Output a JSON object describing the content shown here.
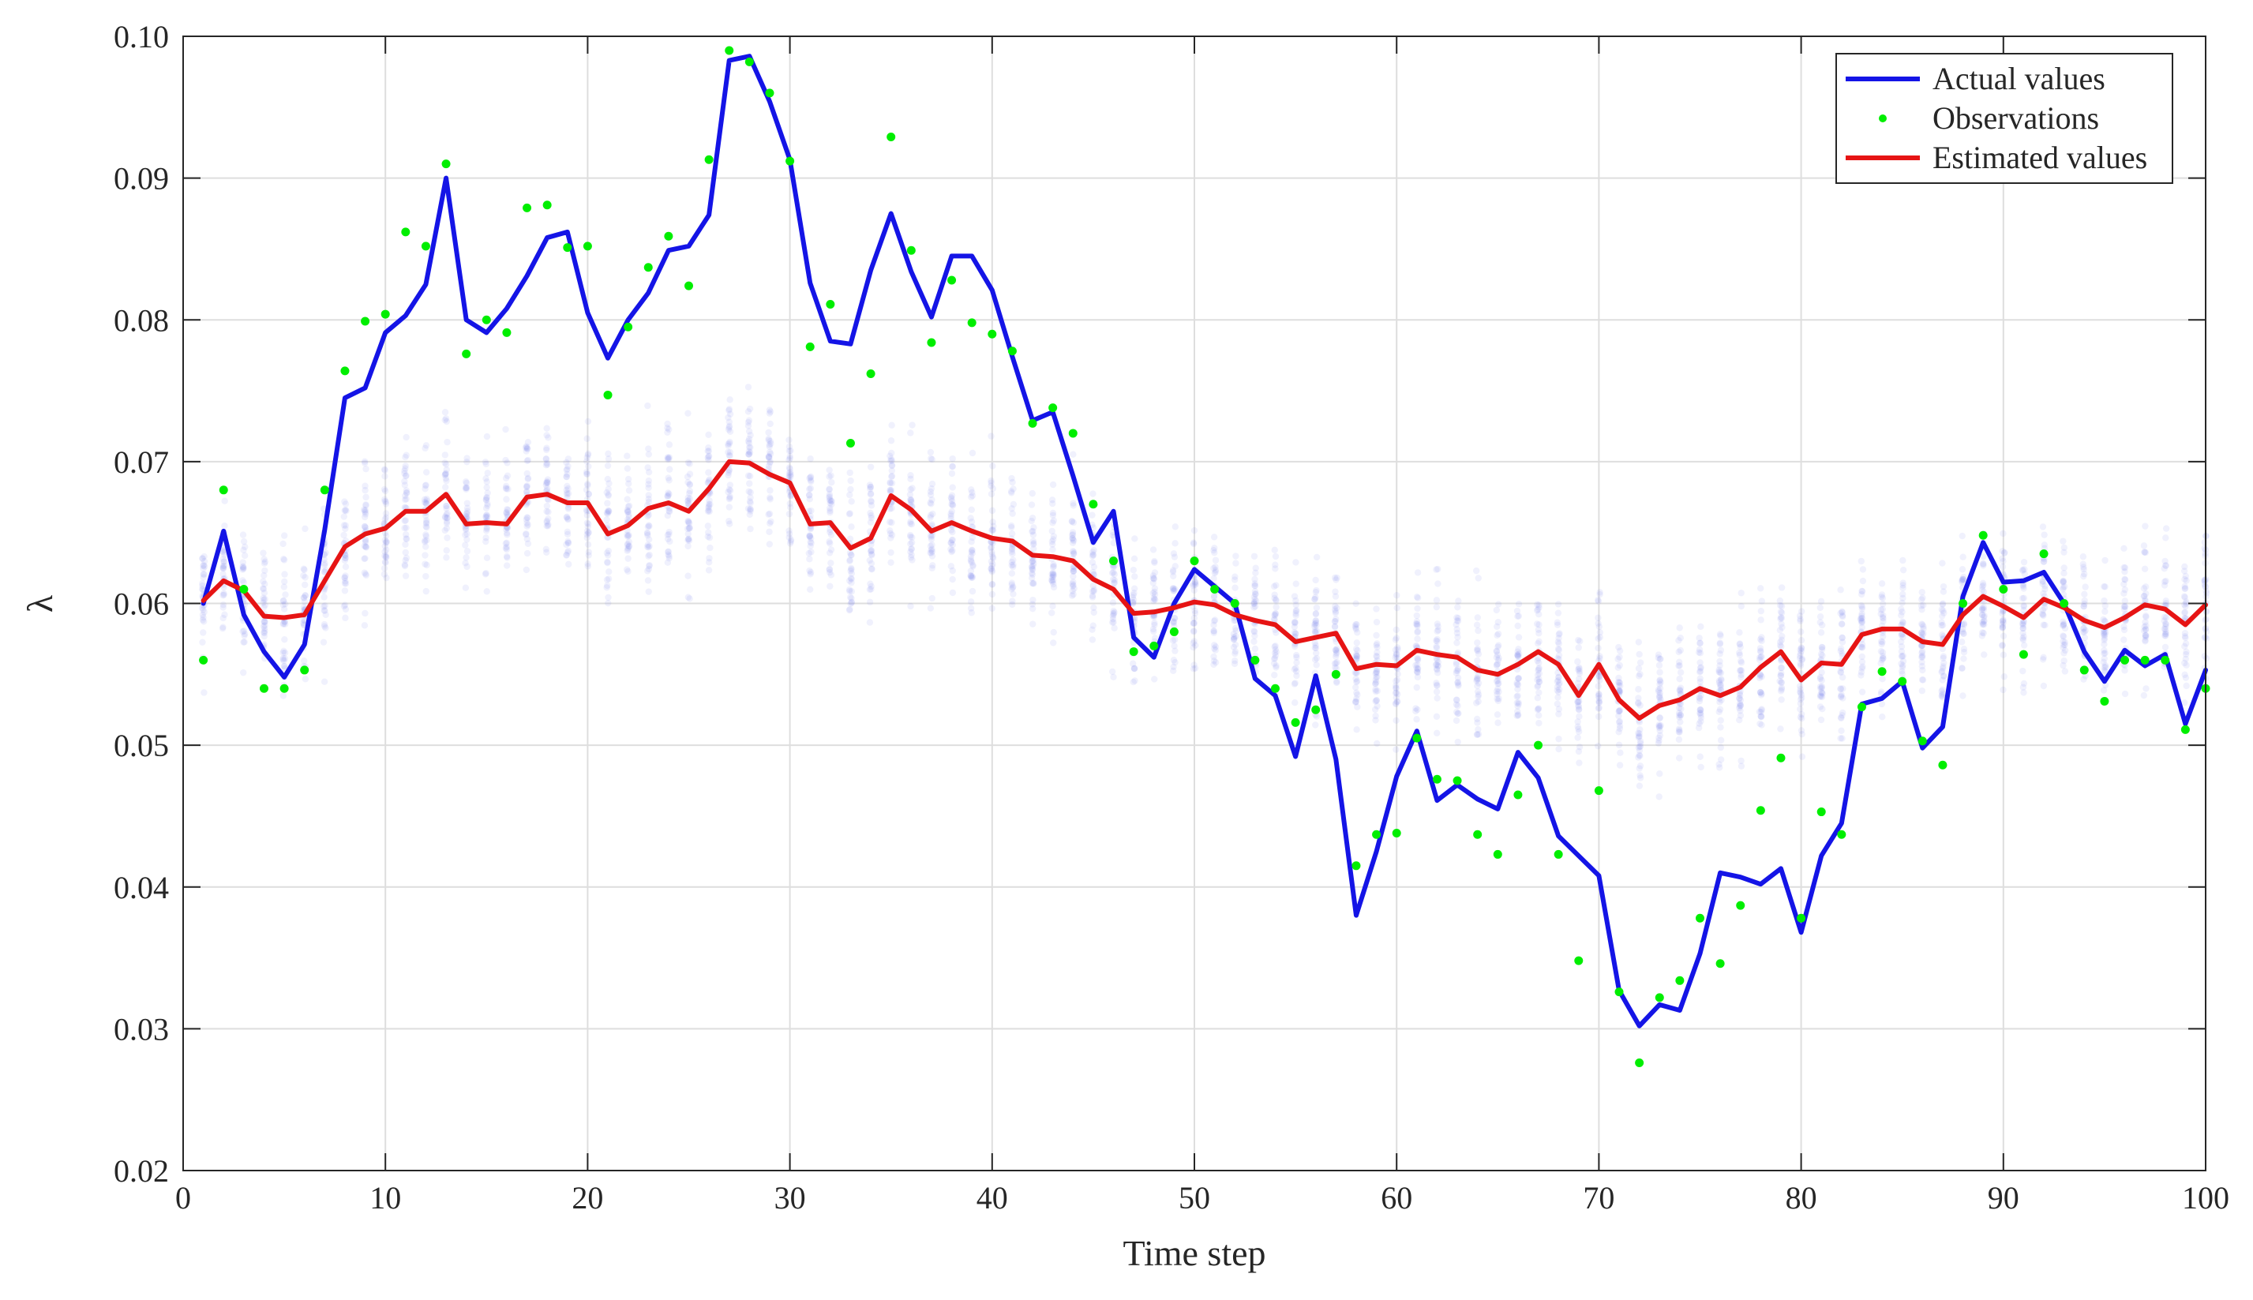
{
  "chart_data": {
    "type": "line",
    "title": "",
    "xlabel": "Time step",
    "ylabel": "λ",
    "xlim": [
      0,
      100
    ],
    "ylim": [
      0.02,
      0.1
    ],
    "x_ticks": [
      0,
      10,
      20,
      30,
      40,
      50,
      60,
      70,
      80,
      90,
      100
    ],
    "y_ticks": [
      0.02,
      0.03,
      0.04,
      0.05,
      0.06,
      0.07,
      0.08,
      0.09,
      0.1
    ],
    "x_tick_labels": [
      "0",
      "10",
      "20",
      "30",
      "40",
      "50",
      "60",
      "70",
      "80",
      "90",
      "100"
    ],
    "y_tick_labels": [
      "0.02",
      "0.03",
      "0.04",
      "0.05",
      "0.06",
      "0.07",
      "0.08",
      "0.09",
      "0.10"
    ],
    "grid": true,
    "legend_position": "top-right",
    "series": [
      {
        "name": "Actual values",
        "style": "line",
        "color": "#1414e6",
        "x": [
          1,
          2,
          3,
          4,
          5,
          6,
          7,
          8,
          9,
          10,
          11,
          12,
          13,
          14,
          15,
          16,
          17,
          18,
          19,
          20,
          21,
          22,
          23,
          24,
          25,
          26,
          27,
          28,
          29,
          30,
          31,
          32,
          33,
          34,
          35,
          36,
          37,
          38,
          39,
          40,
          41,
          42,
          43,
          44,
          45,
          46,
          47,
          48,
          49,
          50,
          51,
          52,
          53,
          54,
          55,
          56,
          57,
          58,
          59,
          60,
          61,
          62,
          63,
          64,
          65,
          66,
          67,
          68,
          69,
          70,
          71,
          72,
          73,
          74,
          75,
          76,
          77,
          78,
          79,
          80,
          81,
          82,
          83,
          84,
          85,
          86,
          87,
          88,
          89,
          90,
          91,
          92,
          93,
          94,
          95,
          96,
          97,
          98,
          99,
          100
        ],
        "values": [
          0.06,
          0.0651,
          0.0592,
          0.0566,
          0.0548,
          0.0571,
          0.0652,
          0.0745,
          0.0752,
          0.0791,
          0.0803,
          0.0825,
          0.09,
          0.08,
          0.0791,
          0.0808,
          0.0831,
          0.0858,
          0.0862,
          0.0805,
          0.0773,
          0.08,
          0.0819,
          0.0849,
          0.0852,
          0.0874,
          0.0983,
          0.0986,
          0.0954,
          0.0913,
          0.0826,
          0.0785,
          0.0783,
          0.0835,
          0.0875,
          0.0834,
          0.0802,
          0.0845,
          0.0845,
          0.0821,
          0.0774,
          0.0729,
          0.0735,
          0.069,
          0.0643,
          0.0665,
          0.0576,
          0.0562,
          0.06,
          0.0624,
          0.0612,
          0.06,
          0.0547,
          0.0535,
          0.0492,
          0.0549,
          0.049,
          0.038,
          0.0425,
          0.0478,
          0.051,
          0.0461,
          0.0472,
          0.0462,
          0.0455,
          0.0495,
          0.0477,
          0.0436,
          0.0422,
          0.0408,
          0.0327,
          0.0302,
          0.0317,
          0.0313,
          0.0353,
          0.041,
          0.0407,
          0.0402,
          0.0413,
          0.0368,
          0.0422,
          0.0445,
          0.0529,
          0.0533,
          0.0545,
          0.0498,
          0.0513,
          0.0605,
          0.0643,
          0.0615,
          0.0616,
          0.0622,
          0.06,
          0.0566,
          0.0545,
          0.0567,
          0.0556,
          0.0564,
          0.0515,
          0.0553
        ]
      },
      {
        "name": "Observations",
        "style": "markers",
        "color": "#00ee00",
        "x": [
          1,
          2,
          3,
          4,
          5,
          6,
          7,
          8,
          9,
          10,
          11,
          12,
          13,
          14,
          15,
          16,
          17,
          18,
          19,
          20,
          21,
          22,
          23,
          24,
          25,
          26,
          27,
          28,
          29,
          30,
          31,
          32,
          33,
          34,
          35,
          36,
          37,
          38,
          39,
          40,
          41,
          42,
          43,
          44,
          45,
          46,
          47,
          48,
          49,
          50,
          51,
          52,
          53,
          54,
          55,
          56,
          57,
          58,
          59,
          60,
          61,
          62,
          63,
          64,
          65,
          66,
          67,
          68,
          69,
          70,
          71,
          72,
          73,
          74,
          75,
          76,
          77,
          78,
          79,
          80,
          81,
          82,
          83,
          84,
          85,
          86,
          87,
          88,
          89,
          90,
          91,
          92,
          93,
          94,
          95,
          96,
          97,
          98,
          99,
          100
        ],
        "values": [
          0.056,
          0.068,
          0.061,
          0.054,
          0.054,
          0.0553,
          0.068,
          0.0764,
          0.0799,
          0.0804,
          0.0862,
          0.0852,
          0.091,
          0.0776,
          0.08,
          0.0791,
          0.0879,
          0.0881,
          0.0851,
          0.0852,
          0.0747,
          0.0795,
          0.0837,
          0.0859,
          0.0824,
          0.0913,
          0.099,
          0.0982,
          0.096,
          0.0912,
          0.0781,
          0.0811,
          0.0713,
          0.0762,
          0.0929,
          0.0849,
          0.0784,
          0.0828,
          0.0798,
          0.079,
          0.0778,
          0.0727,
          0.0738,
          0.072,
          0.067,
          0.063,
          0.0566,
          0.057,
          0.058,
          0.063,
          0.061,
          0.06,
          0.056,
          0.054,
          0.0516,
          0.0525,
          0.055,
          0.0415,
          0.0437,
          0.0438,
          0.0505,
          0.0476,
          0.0475,
          0.0437,
          0.0423,
          0.0465,
          0.05,
          0.0423,
          0.0348,
          0.0468,
          0.0326,
          0.0276,
          0.0322,
          0.0334,
          0.0378,
          0.0346,
          0.0387,
          0.0454,
          0.0491,
          0.0378,
          0.0453,
          0.0437,
          0.0527,
          0.0552,
          0.0545,
          0.0503,
          0.0486,
          0.06,
          0.0648,
          0.061,
          0.0564,
          0.0635,
          0.06,
          0.0553,
          0.0531,
          0.056,
          0.056,
          0.056,
          0.0511,
          0.054
        ]
      },
      {
        "name": "Estimated values",
        "style": "line",
        "color": "#e61414",
        "x": [
          1,
          2,
          3,
          4,
          5,
          6,
          7,
          8,
          9,
          10,
          11,
          12,
          13,
          14,
          15,
          16,
          17,
          18,
          19,
          20,
          21,
          22,
          23,
          24,
          25,
          26,
          27,
          28,
          29,
          30,
          31,
          32,
          33,
          34,
          35,
          36,
          37,
          38,
          39,
          40,
          41,
          42,
          43,
          44,
          45,
          46,
          47,
          48,
          49,
          50,
          51,
          52,
          53,
          54,
          55,
          56,
          57,
          58,
          59,
          60,
          61,
          62,
          63,
          64,
          65,
          66,
          67,
          68,
          69,
          70,
          71,
          72,
          73,
          74,
          75,
          76,
          77,
          78,
          79,
          80,
          81,
          82,
          83,
          84,
          85,
          86,
          87,
          88,
          89,
          90,
          91,
          92,
          93,
          94,
          95,
          96,
          97,
          98,
          99,
          100
        ],
        "values": [
          0.0602,
          0.0616,
          0.0609,
          0.0591,
          0.059,
          0.0592,
          0.0616,
          0.064,
          0.0649,
          0.0653,
          0.0665,
          0.0665,
          0.0677,
          0.0656,
          0.0657,
          0.0656,
          0.0675,
          0.0677,
          0.0671,
          0.0671,
          0.0649,
          0.0655,
          0.0667,
          0.0671,
          0.0665,
          0.0681,
          0.07,
          0.0699,
          0.0691,
          0.0685,
          0.0656,
          0.0657,
          0.0639,
          0.0646,
          0.0676,
          0.0666,
          0.0651,
          0.0657,
          0.0651,
          0.0646,
          0.0644,
          0.0634,
          0.0633,
          0.063,
          0.0617,
          0.061,
          0.0593,
          0.0594,
          0.0597,
          0.0601,
          0.0599,
          0.0592,
          0.0588,
          0.0585,
          0.0573,
          0.0576,
          0.0579,
          0.0554,
          0.0557,
          0.0556,
          0.0567,
          0.0564,
          0.0562,
          0.0553,
          0.055,
          0.0557,
          0.0566,
          0.0557,
          0.0535,
          0.0557,
          0.0532,
          0.0519,
          0.0528,
          0.0532,
          0.054,
          0.0535,
          0.0541,
          0.0555,
          0.0566,
          0.0546,
          0.0558,
          0.0557,
          0.0578,
          0.0582,
          0.0582,
          0.0573,
          0.0571,
          0.0592,
          0.0605,
          0.0598,
          0.059,
          0.0603,
          0.0597,
          0.0588,
          0.0583,
          0.059,
          0.0599,
          0.0596,
          0.0585,
          0.0599
        ]
      }
    ]
  },
  "colors": {
    "axis": "#262626",
    "grid": "#dedede",
    "particles": "#7884ee"
  }
}
